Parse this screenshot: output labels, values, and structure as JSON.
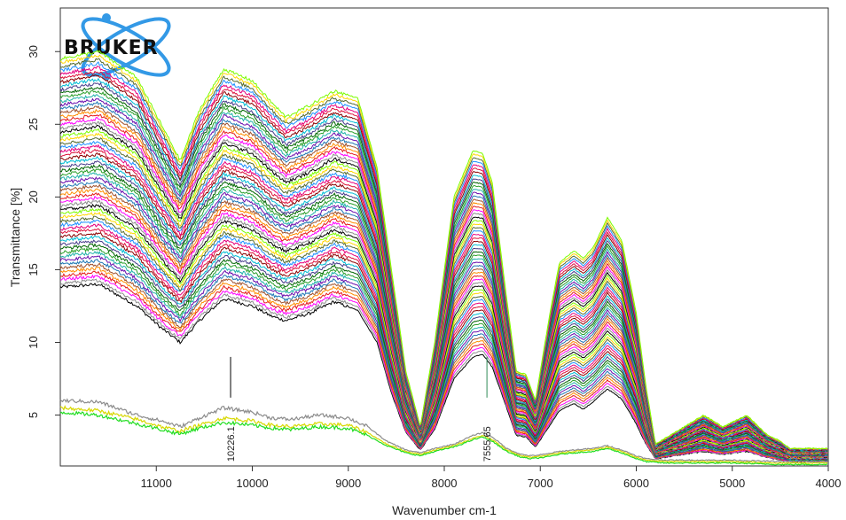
{
  "logo": {
    "text": "BRUKER",
    "accent": "#3399e6"
  },
  "chart_data": {
    "type": "line",
    "xlabel": "Wavenumber cm-1",
    "ylabel": "Transmittance [%]",
    "xlim": [
      12000,
      4000
    ],
    "ylim": [
      1.5,
      33
    ],
    "x_reversed": true,
    "grid": false,
    "legend": "none",
    "x_ticks": [
      11000,
      10000,
      9000,
      8000,
      7000,
      6000,
      5000,
      4000
    ],
    "y_ticks": [
      5,
      10,
      15,
      20,
      25,
      30
    ],
    "markers": [
      {
        "x": 10226.1,
        "label": "10226.1",
        "color": "#000000"
      },
      {
        "x": 7555.65,
        "label": "7555.65",
        "color": "#2e8b57"
      }
    ],
    "upper_family": {
      "count": 60,
      "top_envelope": [
        [
          12000,
          29.5
        ],
        [
          11600,
          30.0
        ],
        [
          11200,
          28.2
        ],
        [
          10950,
          25.0
        ],
        [
          10750,
          22.5
        ],
        [
          10550,
          26.0
        ],
        [
          10300,
          28.8
        ],
        [
          10000,
          28.0
        ],
        [
          9800,
          26.5
        ],
        [
          9650,
          25.5
        ],
        [
          9400,
          26.3
        ],
        [
          9150,
          27.3
        ],
        [
          8900,
          26.8
        ],
        [
          8700,
          22.0
        ],
        [
          8550,
          15.0
        ],
        [
          8400,
          8.0
        ],
        [
          8250,
          4.2
        ],
        [
          8100,
          10.0
        ],
        [
          7900,
          20.0
        ],
        [
          7700,
          23.2
        ],
        [
          7600,
          23.0
        ],
        [
          7500,
          21.0
        ],
        [
          7350,
          13.0
        ],
        [
          7250,
          8.0
        ],
        [
          7150,
          7.8
        ],
        [
          7050,
          6.0
        ],
        [
          6900,
          12.0
        ],
        [
          6800,
          15.5
        ],
        [
          6650,
          16.3
        ],
        [
          6550,
          15.8
        ],
        [
          6450,
          16.5
        ],
        [
          6300,
          18.6
        ],
        [
          6150,
          17.0
        ],
        [
          6000,
          12.0
        ],
        [
          5900,
          7.0
        ],
        [
          5800,
          3.0
        ],
        [
          5600,
          3.8
        ],
        [
          5300,
          5.0
        ],
        [
          5100,
          4.2
        ],
        [
          4850,
          5.0
        ],
        [
          4650,
          3.7
        ],
        [
          4500,
          3.2
        ],
        [
          4400,
          2.7
        ],
        [
          4000,
          2.7
        ]
      ],
      "bottom_envelope": [
        [
          12000,
          13.8
        ],
        [
          11600,
          14.0
        ],
        [
          11200,
          12.5
        ],
        [
          10950,
          11.0
        ],
        [
          10750,
          10.0
        ],
        [
          10550,
          11.5
        ],
        [
          10300,
          13.0
        ],
        [
          10000,
          12.5
        ],
        [
          9800,
          11.8
        ],
        [
          9650,
          11.5
        ],
        [
          9400,
          12.0
        ],
        [
          9150,
          12.8
        ],
        [
          8900,
          12.2
        ],
        [
          8700,
          10.0
        ],
        [
          8550,
          6.5
        ],
        [
          8400,
          3.8
        ],
        [
          8250,
          2.6
        ],
        [
          8100,
          4.0
        ],
        [
          7900,
          7.5
        ],
        [
          7700,
          9.0
        ],
        [
          7600,
          9.2
        ],
        [
          7500,
          8.3
        ],
        [
          7350,
          5.5
        ],
        [
          7250,
          3.6
        ],
        [
          7150,
          3.5
        ],
        [
          7050,
          2.8
        ],
        [
          6900,
          4.3
        ],
        [
          6800,
          5.3
        ],
        [
          6650,
          5.8
        ],
        [
          6550,
          5.4
        ],
        [
          6450,
          5.9
        ],
        [
          6300,
          6.8
        ],
        [
          6150,
          6.1
        ],
        [
          6000,
          4.4
        ],
        [
          5900,
          3.0
        ],
        [
          5800,
          2.0
        ],
        [
          5600,
          2.2
        ],
        [
          5300,
          2.5
        ],
        [
          5100,
          2.3
        ],
        [
          4850,
          2.5
        ],
        [
          4650,
          2.1
        ],
        [
          4500,
          1.9
        ],
        [
          4400,
          1.8
        ],
        [
          4000,
          1.8
        ]
      ]
    },
    "lower_series": [
      {
        "color": "#8c8c8c",
        "points": [
          [
            12000,
            6.0
          ],
          [
            11600,
            5.9
          ],
          [
            11200,
            5.0
          ],
          [
            10950,
            4.6
          ],
          [
            10750,
            4.2
          ],
          [
            10550,
            4.8
          ],
          [
            10300,
            5.5
          ],
          [
            10000,
            5.2
          ],
          [
            9800,
            4.8
          ],
          [
            9600,
            4.7
          ],
          [
            9300,
            5.0
          ],
          [
            9000,
            4.8
          ],
          [
            8800,
            4.2
          ],
          [
            8600,
            3.2
          ],
          [
            8400,
            2.6
          ],
          [
            8250,
            2.4
          ],
          [
            8100,
            2.7
          ],
          [
            7900,
            3.0
          ],
          [
            7700,
            3.6
          ],
          [
            7600,
            3.8
          ],
          [
            7500,
            3.5
          ],
          [
            7350,
            2.7
          ],
          [
            7200,
            2.3
          ],
          [
            7100,
            2.2
          ],
          [
            6950,
            2.3
          ],
          [
            6800,
            2.5
          ],
          [
            6650,
            2.6
          ],
          [
            6450,
            2.7
          ],
          [
            6300,
            2.9
          ],
          [
            6150,
            2.6
          ],
          [
            6000,
            2.2
          ],
          [
            5900,
            2.0
          ],
          [
            5700,
            1.9
          ],
          [
            5000,
            1.9
          ],
          [
            4500,
            1.8
          ],
          [
            4000,
            1.8
          ]
        ]
      },
      {
        "color": "#d8d800",
        "points": [
          [
            12000,
            5.5
          ],
          [
            11600,
            5.3
          ],
          [
            11200,
            4.7
          ],
          [
            10950,
            4.2
          ],
          [
            10750,
            3.9
          ],
          [
            10550,
            4.3
          ],
          [
            10300,
            4.8
          ],
          [
            10000,
            4.6
          ],
          [
            9800,
            4.3
          ],
          [
            9600,
            4.2
          ],
          [
            9300,
            4.4
          ],
          [
            9000,
            4.3
          ],
          [
            8800,
            3.8
          ],
          [
            8600,
            3.0
          ],
          [
            8400,
            2.5
          ],
          [
            8250,
            2.3
          ],
          [
            8100,
            2.6
          ],
          [
            7900,
            2.9
          ],
          [
            7700,
            3.4
          ],
          [
            7600,
            3.6
          ],
          [
            7500,
            3.3
          ],
          [
            7350,
            2.6
          ],
          [
            7200,
            2.2
          ],
          [
            7100,
            2.1
          ],
          [
            6950,
            2.2
          ],
          [
            6800,
            2.4
          ],
          [
            6650,
            2.5
          ],
          [
            6450,
            2.6
          ],
          [
            6300,
            2.8
          ],
          [
            6150,
            2.5
          ],
          [
            6000,
            2.1
          ],
          [
            5900,
            1.9
          ],
          [
            5700,
            1.8
          ],
          [
            5000,
            1.8
          ],
          [
            4500,
            1.7
          ],
          [
            4000,
            1.7
          ]
        ]
      },
      {
        "color": "#22dd22",
        "points": [
          [
            12000,
            5.2
          ],
          [
            11600,
            5.0
          ],
          [
            11200,
            4.4
          ],
          [
            10950,
            4.0
          ],
          [
            10750,
            3.7
          ],
          [
            10550,
            4.1
          ],
          [
            10300,
            4.5
          ],
          [
            10000,
            4.3
          ],
          [
            9800,
            4.1
          ],
          [
            9600,
            4.0
          ],
          [
            9300,
            4.2
          ],
          [
            9000,
            4.1
          ],
          [
            8800,
            3.6
          ],
          [
            8600,
            2.9
          ],
          [
            8400,
            2.4
          ],
          [
            8250,
            2.2
          ],
          [
            8100,
            2.5
          ],
          [
            7900,
            2.8
          ],
          [
            7700,
            3.3
          ],
          [
            7600,
            3.5
          ],
          [
            7500,
            3.2
          ],
          [
            7350,
            2.5
          ],
          [
            7200,
            2.1
          ],
          [
            7100,
            2.0
          ],
          [
            6950,
            2.1
          ],
          [
            6800,
            2.3
          ],
          [
            6650,
            2.4
          ],
          [
            6450,
            2.5
          ],
          [
            6300,
            2.7
          ],
          [
            6150,
            2.4
          ],
          [
            6000,
            2.0
          ],
          [
            5900,
            1.8
          ],
          [
            5700,
            1.7
          ],
          [
            5000,
            1.7
          ],
          [
            4500,
            1.6
          ],
          [
            4000,
            1.6
          ]
        ]
      }
    ],
    "palette": [
      "#000000",
      "#e41a1c",
      "#1f77b4",
      "#2ca02c",
      "#00bcd4",
      "#e6007e",
      "#ffd700",
      "#8c8c8c",
      "#ff8c00",
      "#6a0dad",
      "#006400",
      "#8b0000",
      "#1e90ff",
      "#7cfc00",
      "#ff00ff",
      "#a0522d",
      "#20b2aa",
      "#483d8b",
      "#dc143c",
      "#556b2f"
    ]
  }
}
